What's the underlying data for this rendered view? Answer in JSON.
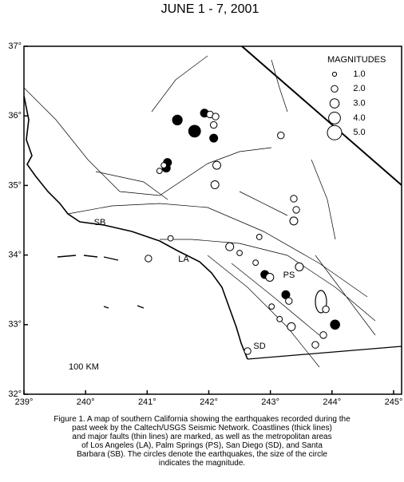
{
  "title": "JUNE 1 - 7, 2001",
  "map": {
    "xlim": [
      239,
      245.13
    ],
    "ylim": [
      32,
      37
    ],
    "xticks": [
      {
        "value": 239,
        "label": "239°"
      },
      {
        "value": 240,
        "label": "240°"
      },
      {
        "value": 241,
        "label": "241°"
      },
      {
        "value": 242,
        "label": "242°"
      },
      {
        "value": 243,
        "label": "243°"
      },
      {
        "value": 244,
        "label": "244°"
      },
      {
        "value": 245,
        "label": "245°"
      }
    ],
    "yticks": [
      {
        "value": 32,
        "label": "32°"
      },
      {
        "value": 33,
        "label": "33°"
      },
      {
        "value": 34,
        "label": "34°"
      },
      {
        "value": 35,
        "label": "35°"
      },
      {
        "value": 36,
        "label": "36°"
      },
      {
        "value": 37,
        "label": "37°"
      }
    ]
  },
  "legend": {
    "title": "MAGNITUDES",
    "magnitudes": [
      {
        "value": 1,
        "label": "1.0"
      },
      {
        "value": 2,
        "label": "2.0"
      },
      {
        "value": 3,
        "label": "3.0"
      },
      {
        "value": 4,
        "label": "4.0"
      },
      {
        "value": 5,
        "label": "5.0"
      }
    ]
  },
  "places": [
    "SB",
    "LA",
    "PS",
    "SD"
  ],
  "scale_label": "100 KM",
  "earthquakes": [
    {
      "lon": 241.49,
      "lat": 35.94,
      "magnitude": 3.2,
      "filled": true
    },
    {
      "lon": 241.77,
      "lat": 35.78,
      "magnitude": 4.0,
      "filled": true
    },
    {
      "lon": 242.08,
      "lat": 35.68,
      "magnitude": 2.5,
      "filled": true
    },
    {
      "lon": 241.93,
      "lat": 36.04,
      "magnitude": 2.5,
      "filled": true
    },
    {
      "lon": 242.02,
      "lat": 36.02,
      "magnitude": 2.0,
      "filled": false
    },
    {
      "lon": 242.11,
      "lat": 35.99,
      "magnitude": 2.0,
      "filled": false
    },
    {
      "lon": 242.08,
      "lat": 35.87,
      "magnitude": 2.0,
      "filled": false
    },
    {
      "lon": 241.33,
      "lat": 35.33,
      "magnitude": 2.5,
      "filled": true
    },
    {
      "lon": 241.31,
      "lat": 35.25,
      "magnitude": 2.5,
      "filled": true
    },
    {
      "lon": 241.27,
      "lat": 35.29,
      "magnitude": 1.5,
      "filled": false
    },
    {
      "lon": 241.2,
      "lat": 35.21,
      "magnitude": 1.5,
      "filled": false
    },
    {
      "lon": 243.17,
      "lat": 35.72,
      "magnitude": 2.0,
      "filled": false
    },
    {
      "lon": 242.13,
      "lat": 35.29,
      "magnitude": 2.5,
      "filled": false
    },
    {
      "lon": 242.1,
      "lat": 35.01,
      "magnitude": 2.5,
      "filled": false
    },
    {
      "lon": 243.38,
      "lat": 34.81,
      "magnitude": 2.0,
      "filled": false
    },
    {
      "lon": 243.42,
      "lat": 34.65,
      "magnitude": 2.0,
      "filled": false
    },
    {
      "lon": 243.38,
      "lat": 34.49,
      "magnitude": 2.5,
      "filled": false
    },
    {
      "lon": 242.82,
      "lat": 34.26,
      "magnitude": 1.5,
      "filled": false
    },
    {
      "lon": 242.34,
      "lat": 34.12,
      "magnitude": 2.5,
      "filled": false
    },
    {
      "lon": 242.5,
      "lat": 34.03,
      "magnitude": 1.5,
      "filled": false
    },
    {
      "lon": 241.02,
      "lat": 33.95,
      "magnitude": 2.0,
      "filled": false
    },
    {
      "lon": 242.76,
      "lat": 33.89,
      "magnitude": 1.5,
      "filled": false
    },
    {
      "lon": 242.91,
      "lat": 33.72,
      "magnitude": 2.5,
      "filled": true
    },
    {
      "lon": 242.99,
      "lat": 33.68,
      "magnitude": 2.5,
      "filled": false
    },
    {
      "lon": 243.47,
      "lat": 33.83,
      "magnitude": 2.5,
      "filled": false
    },
    {
      "lon": 243.25,
      "lat": 33.43,
      "magnitude": 2.5,
      "filled": true
    },
    {
      "lon": 243.3,
      "lat": 33.34,
      "magnitude": 2.0,
      "filled": false
    },
    {
      "lon": 243.9,
      "lat": 33.22,
      "magnitude": 2.0,
      "filled": false
    },
    {
      "lon": 244.05,
      "lat": 33.0,
      "magnitude": 3.0,
      "filled": true
    },
    {
      "lon": 243.34,
      "lat": 32.97,
      "magnitude": 2.5,
      "filled": false
    },
    {
      "lon": 243.86,
      "lat": 32.85,
      "magnitude": 2.0,
      "filled": false
    },
    {
      "lon": 243.73,
      "lat": 32.71,
      "magnitude": 2.0,
      "filled": false
    },
    {
      "lon": 243.15,
      "lat": 33.08,
      "magnitude": 1.5,
      "filled": false
    },
    {
      "lon": 243.02,
      "lat": 33.26,
      "magnitude": 1.5,
      "filled": false
    },
    {
      "lon": 242.63,
      "lat": 32.62,
      "magnitude": 2.0,
      "filled": false
    },
    {
      "lon": 241.38,
      "lat": 34.24,
      "magnitude": 1.5,
      "filled": false
    }
  ],
  "caption": [
    "Figure 1. A map of southern California showing the earthquakes recorded during the",
    "past week by the Caltech/USGS Seismic Network.  Coastlines (thick lines)",
    "and major faults (thin lines) are marked, as well as the metropolitan areas",
    "of Los Angeles (LA), Palm Springs (PS), San Diego (SD), and Santa",
    "Barbara (SB).  The circles denote the earthquakes, the size of the circle",
    "indicates the magnitude."
  ]
}
